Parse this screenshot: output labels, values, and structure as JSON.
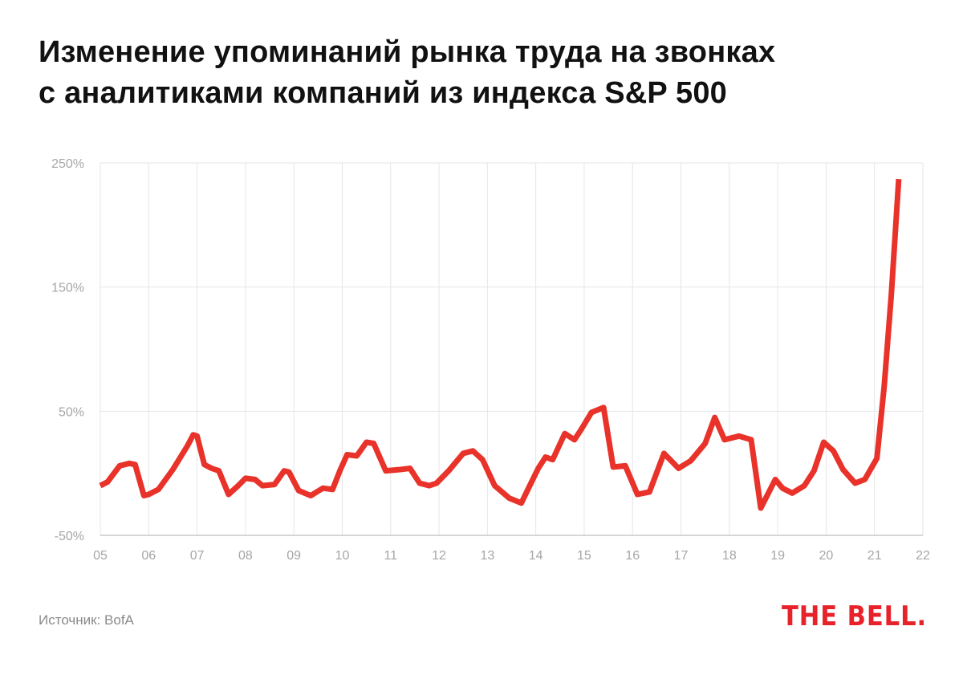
{
  "title": {
    "line1": "Изменение упоминаний рынка труда на звонках",
    "line2": "с аналитиками компаний из индекса S&P 500"
  },
  "source": "Источник: BofA",
  "logo": "THE BELL.",
  "colors": {
    "line": "#e8322a",
    "grid": "#e6e6e6",
    "axis": "#bdbdbd",
    "tick_text": "#a6a6a6",
    "title": "#111111",
    "logo": "#e8222a"
  },
  "chart_data": {
    "type": "line",
    "title": "Изменение упоминаний рынка труда на звонках с аналитиками компаний из индекса S&P 500",
    "xlabel": "",
    "ylabel": "",
    "xlim": [
      2005,
      2022
    ],
    "ylim": [
      -50,
      250
    ],
    "x_ticks": [
      2005,
      2006,
      2007,
      2008,
      2009,
      2010,
      2011,
      2012,
      2013,
      2014,
      2015,
      2016,
      2017,
      2018,
      2019,
      2020,
      2021,
      2022
    ],
    "x_tick_labels": [
      "05",
      "06",
      "07",
      "08",
      "09",
      "10",
      "11",
      "12",
      "13",
      "14",
      "15",
      "16",
      "17",
      "18",
      "19",
      "20",
      "21",
      "22"
    ],
    "y_ticks": [
      -50,
      50,
      150,
      250
    ],
    "y_tick_labels": [
      "-50%",
      "50%",
      "150%",
      "250%"
    ],
    "grid": true,
    "legend": "none",
    "series": [
      {
        "name": "",
        "points": [
          [
            2005.0,
            -10
          ],
          [
            2005.15,
            -7
          ],
          [
            2005.4,
            6
          ],
          [
            2005.6,
            8
          ],
          [
            2005.72,
            7
          ],
          [
            2005.9,
            -18
          ],
          [
            2006.0,
            -17
          ],
          [
            2006.2,
            -13
          ],
          [
            2006.5,
            3
          ],
          [
            2006.8,
            22
          ],
          [
            2006.92,
            31
          ],
          [
            2007.0,
            30
          ],
          [
            2007.15,
            7
          ],
          [
            2007.3,
            4
          ],
          [
            2007.45,
            2
          ],
          [
            2007.65,
            -17
          ],
          [
            2007.85,
            -10
          ],
          [
            2008.0,
            -4
          ],
          [
            2008.2,
            -5
          ],
          [
            2008.35,
            -10
          ],
          [
            2008.6,
            -9
          ],
          [
            2008.8,
            2
          ],
          [
            2008.9,
            1
          ],
          [
            2009.1,
            -14
          ],
          [
            2009.35,
            -18
          ],
          [
            2009.6,
            -12
          ],
          [
            2009.8,
            -13
          ],
          [
            2009.95,
            2
          ],
          [
            2010.1,
            15
          ],
          [
            2010.3,
            14
          ],
          [
            2010.5,
            25
          ],
          [
            2010.65,
            24
          ],
          [
            2010.9,
            2
          ],
          [
            2011.2,
            3
          ],
          [
            2011.4,
            4
          ],
          [
            2011.6,
            -8
          ],
          [
            2011.8,
            -10
          ],
          [
            2011.95,
            -8
          ],
          [
            2012.2,
            2
          ],
          [
            2012.5,
            16
          ],
          [
            2012.7,
            18
          ],
          [
            2012.9,
            11
          ],
          [
            2013.15,
            -10
          ],
          [
            2013.45,
            -20
          ],
          [
            2013.7,
            -24
          ],
          [
            2013.85,
            -12
          ],
          [
            2014.05,
            4
          ],
          [
            2014.2,
            13
          ],
          [
            2014.35,
            11
          ],
          [
            2014.6,
            32
          ],
          [
            2014.8,
            27
          ],
          [
            2014.95,
            36
          ],
          [
            2015.15,
            49
          ],
          [
            2015.4,
            53
          ],
          [
            2015.6,
            5
          ],
          [
            2015.85,
            6
          ],
          [
            2016.1,
            -17
          ],
          [
            2016.35,
            -15
          ],
          [
            2016.65,
            16
          ],
          [
            2016.8,
            10
          ],
          [
            2016.95,
            4
          ],
          [
            2017.2,
            10
          ],
          [
            2017.5,
            24
          ],
          [
            2017.7,
            45
          ],
          [
            2017.9,
            27
          ],
          [
            2018.2,
            30
          ],
          [
            2018.45,
            27
          ],
          [
            2018.65,
            -28
          ],
          [
            2018.95,
            -5
          ],
          [
            2019.1,
            -12
          ],
          [
            2019.3,
            -16
          ],
          [
            2019.55,
            -10
          ],
          [
            2019.75,
            2
          ],
          [
            2019.95,
            25
          ],
          [
            2020.15,
            18
          ],
          [
            2020.35,
            3
          ],
          [
            2020.6,
            -8
          ],
          [
            2020.8,
            -5
          ],
          [
            2021.05,
            12
          ],
          [
            2021.2,
            70
          ],
          [
            2021.35,
            145
          ],
          [
            2021.5,
            237
          ]
        ]
      }
    ]
  }
}
